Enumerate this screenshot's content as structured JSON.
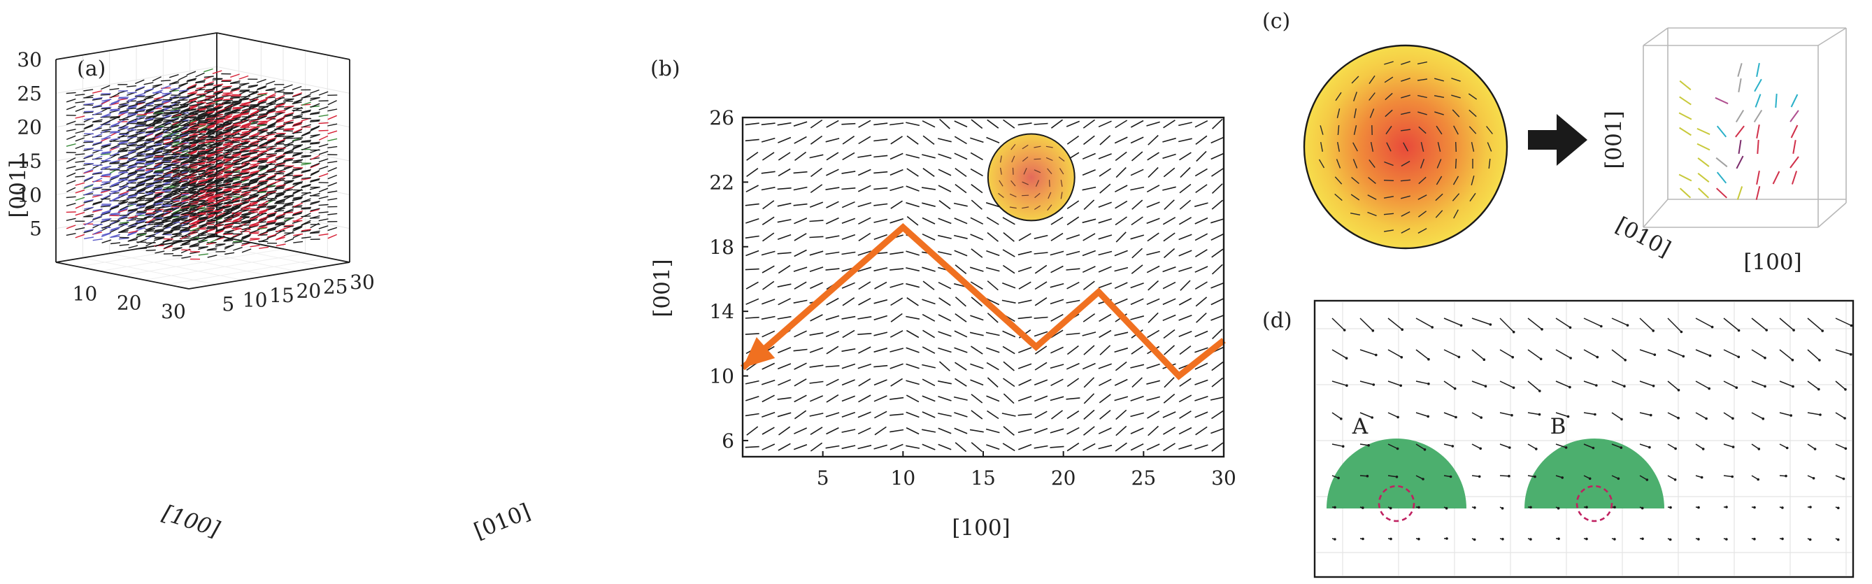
{
  "panels": {
    "a": {
      "label": "(a)"
    },
    "b": {
      "label": "(b)"
    },
    "c": {
      "label": "(c)"
    },
    "d": {
      "label": "(d)"
    }
  },
  "chart_data": [
    {
      "id": "a",
      "type": "3d-quiver",
      "xlabel": "[100]",
      "ylabel": "[010]",
      "zlabel": "[001]",
      "x_ticks": [
        10,
        20,
        30
      ],
      "y_ticks": [
        5,
        10,
        15,
        20,
        25,
        30
      ],
      "z_ticks": [
        5,
        10,
        15,
        20,
        25,
        30
      ],
      "xlim": [
        0,
        30
      ],
      "ylim": [
        0,
        30
      ],
      "zlim": [
        0,
        30
      ],
      "colors": {
        "blue": "#5b5bc8",
        "red": "#d62035",
        "black": "#1a1a1a",
        "green": "#3a8a3a"
      }
    },
    {
      "id": "b",
      "type": "quiver-2d",
      "xlabel": "[100]",
      "ylabel": "[001]",
      "x_ticks": [
        5,
        10,
        15,
        20,
        25,
        30
      ],
      "y_ticks": [
        6,
        10,
        14,
        18,
        22,
        26
      ],
      "xlim": [
        0,
        30
      ],
      "ylim": [
        5,
        26
      ],
      "circle": {
        "x": 18,
        "y": 22.3,
        "r": 2.7
      },
      "path": [
        [
          0,
          10.5
        ],
        [
          10,
          19.2
        ],
        [
          18.3,
          11.8
        ],
        [
          22.2,
          15.2
        ],
        [
          27.2,
          10.0
        ],
        [
          30,
          12.2
        ]
      ],
      "path_color": "#f07020"
    },
    {
      "id": "c",
      "type": "schematic",
      "xlabel": "[100]",
      "ylabel": "[001]",
      "depth_label": "[010]",
      "colors": {
        "outer": "#f5d94a",
        "inner": "#e84a3a",
        "arrow": "#1a1a1a"
      }
    },
    {
      "id": "d",
      "type": "quiver-2d",
      "regions": [
        {
          "label": "A",
          "color": "#4caf6e"
        },
        {
          "label": "B",
          "color": "#4caf6e"
        }
      ],
      "marker_color": "#c02060"
    }
  ]
}
